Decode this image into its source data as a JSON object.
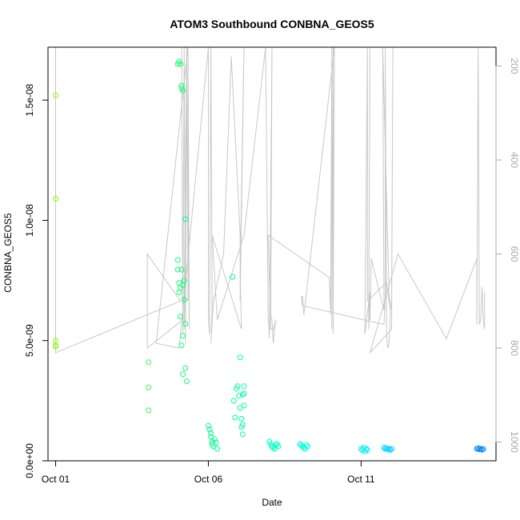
{
  "chart_data": {
    "type": "scatter",
    "title": "ATOM3 Southbound CONBNA_GEOS5",
    "xlabel": "Date",
    "ylabel": "CONBNA_GEOS5",
    "x_type": "date",
    "xlim": [
      "2016-09-30T18:00",
      "2016-10-15T10:00"
    ],
    "ylim": [
      0,
      1.72e-08
    ],
    "ylim_right": [
      1040,
      160
    ],
    "grid": false,
    "legend": "none",
    "x_ticks": [
      {
        "value": "2016-10-01T00:00",
        "label": "Oct 01"
      },
      {
        "value": "2016-10-06T00:00",
        "label": "Oct 06"
      },
      {
        "value": "2016-10-11T00:00",
        "label": "Oct 11"
      }
    ],
    "y_ticks": [
      {
        "value": 0,
        "label": "0.0e+00"
      },
      {
        "value": 5e-09,
        "label": "5.0e-09"
      },
      {
        "value": 1e-08,
        "label": "1.0e-08"
      },
      {
        "value": 1.5e-08,
        "label": "1.5e-08"
      }
    ],
    "y_right_ticks": [
      {
        "value": 200,
        "label": "200"
      },
      {
        "value": 400,
        "label": "400"
      },
      {
        "value": 600,
        "label": "600"
      },
      {
        "value": 800,
        "label": "800"
      },
      {
        "value": 1000,
        "label": "1000"
      }
    ],
    "colors": {
      "gradient": [
        "#80ff00",
        "#00ff80",
        "#00ffff",
        "#0080ff"
      ],
      "pressure_line": "#c8c8c8",
      "axis": "#000000",
      "right_axis": "#a9a9a9"
    },
    "series": [
      {
        "kind": "points",
        "axis": "left",
        "x": [
          "2016-10-01T00:00",
          "2016-10-01T00:00",
          "2016-10-01T00:00",
          "2016-10-01T00:00",
          "2016-10-01T00:00",
          "2016-10-04T01:00",
          "2016-10-04T01:00",
          "2016-10-04T01:00",
          "2016-10-05T00:00",
          "2016-10-05T00:00",
          "2016-10-05T00:00",
          "2016-10-05T01:00",
          "2016-10-05T01:00",
          "2016-10-05T01:00",
          "2016-10-05T02:00",
          "2016-10-05T02:00",
          "2016-10-05T02:00",
          "2016-10-05T03:00",
          "2016-10-05T03:00",
          "2016-10-05T03:00",
          "2016-10-05T03:00",
          "2016-10-05T04:00",
          "2016-10-05T04:00",
          "2016-10-05T04:00",
          "2016-10-05T04:00",
          "2016-10-05T05:00",
          "2016-10-05T05:00",
          "2016-10-05T06:00",
          "2016-10-05T06:00",
          "2016-10-05T06:00",
          "2016-10-05T07:00",
          "2016-10-06T00:00",
          "2016-10-06T01:00",
          "2016-10-06T02:00",
          "2016-10-06T02:00",
          "2016-10-06T03:00",
          "2016-10-06T03:00",
          "2016-10-06T04:00",
          "2016-10-06T05:00",
          "2016-10-06T06:00",
          "2016-10-06T07:00",
          "2016-10-06T19:00",
          "2016-10-06T20:00",
          "2016-10-06T21:00",
          "2016-10-06T22:00",
          "2016-10-06T23:00",
          "2016-10-07T00:00",
          "2016-10-07T01:00",
          "2016-10-07T01:00",
          "2016-10-07T02:00",
          "2016-10-07T02:00",
          "2016-10-07T03:00",
          "2016-10-07T03:00",
          "2016-10-07T04:00",
          "2016-10-07T04:00",
          "2016-10-07T04:00",
          "2016-10-07T03:00",
          "2016-10-08T00:00",
          "2016-10-08T01:00",
          "2016-10-08T02:00",
          "2016-10-08T03:00",
          "2016-10-08T04:00",
          "2016-10-08T05:00",
          "2016-10-08T06:00",
          "2016-10-08T07:00",
          "2016-10-09T00:00",
          "2016-10-09T01:00",
          "2016-10-09T02:00",
          "2016-10-09T03:00",
          "2016-10-09T04:00",
          "2016-10-09T05:00",
          "2016-10-09T06:00",
          "2016-10-11T00:00",
          "2016-10-11T01:00",
          "2016-10-11T02:00",
          "2016-10-11T03:00",
          "2016-10-11T04:00",
          "2016-10-11T05:00",
          "2016-10-11T18:00",
          "2016-10-11T19:00",
          "2016-10-11T20:00",
          "2016-10-11T21:00",
          "2016-10-11T22:00",
          "2016-10-11T23:00",
          "2016-10-12T00:00",
          "2016-10-14T19:00",
          "2016-10-14T20:00",
          "2016-10-14T21:00",
          "2016-10-14T22:00",
          "2016-10-14T23:00",
          "2016-10-15T00:00"
        ],
        "y": [
          1.52e-08,
          1.09e-08,
          5e-09,
          4.8e-09,
          4.75e-09,
          4.1e-09,
          3.05e-09,
          2.1e-09,
          1.65e-08,
          8.35e-09,
          7.95e-09,
          1.66e-08,
          7.4e-09,
          7e-09,
          1.65e-08,
          7.2e-09,
          6e-09,
          1.56e-08,
          1.55e-08,
          7.95e-09,
          4.8e-09,
          1.54e-08,
          7.3e-09,
          5.2e-09,
          3.6e-09,
          7.5e-09,
          6.7e-09,
          1.005e-08,
          5.7e-09,
          3.85e-09,
          3.3e-09,
          1.45e-09,
          1.3e-09,
          1.15e-09,
          1e-09,
          8e-10,
          7e-10,
          6e-10,
          9e-10,
          7.5e-10,
          5e-10,
          7.65e-09,
          2.5e-09,
          1.8e-09,
          3e-09,
          3.1e-09,
          2.7e-09,
          2.2e-09,
          4.3e-09,
          1.75e-09,
          1.4e-09,
          1.5e-09,
          1.1e-09,
          2.8e-09,
          3.1e-09,
          2.3e-09,
          2.75e-09,
          8e-10,
          7e-10,
          6e-10,
          5.5e-10,
          5e-10,
          6.5e-10,
          7e-10,
          6e-10,
          7e-10,
          6.5e-10,
          6e-10,
          5.5e-10,
          5e-10,
          6.5e-10,
          6e-10,
          5e-10,
          4.5e-10,
          5.5e-10,
          4e-10,
          5e-10,
          4.5e-10,
          5.5e-10,
          5e-10,
          5.2e-10,
          4.8e-10,
          5e-10,
          4.5e-10,
          5e-10,
          5e-10,
          5.2e-10,
          4.8e-10,
          5e-10,
          4.6e-10,
          4.9e-10
        ]
      },
      {
        "kind": "line",
        "axis": "right",
        "name": "",
        "x": [
          "2016-10-01T00:00",
          "2016-10-01T00:00",
          "2016-10-01T00:00",
          "2016-10-05T02:00",
          "2016-10-04T00:00",
          "2016-10-04T00:00",
          "2016-10-05T04:00",
          "2016-10-05T03:00",
          "2016-10-05T04:00",
          "2016-10-05T05:00",
          "2016-10-05T06:00",
          "2016-10-05T07:00",
          "2016-10-05T05:00",
          "2016-10-05T05:00",
          "2016-10-05T07:00",
          "2016-10-05T06:00",
          "2016-10-05T07:00",
          "2016-10-05T08:00",
          "2016-10-05T07:00",
          "2016-10-05T09:00",
          "2016-10-05T08:00",
          "2016-10-05T09:00",
          "2016-10-05T08:00",
          "2016-10-04T07:00",
          "2016-10-05T01:00",
          "2016-10-06T00:00",
          "2016-10-06T00:00",
          "2016-10-06T01:00",
          "2016-10-06T02:00",
          "2016-10-06T03:00",
          "2016-10-06T02:00",
          "2016-10-06T04:00",
          "2016-10-06T12:00",
          "2016-10-06T18:00",
          "2016-10-07T01:00",
          "2016-10-07T01:00",
          "2016-10-07T04:00",
          "2016-10-07T01:00",
          "2016-10-07T02:00",
          "2016-10-06T03:00",
          "2016-10-06T07:00",
          "2016-10-07T04:00",
          "2016-10-07T21:00",
          "2016-10-07T23:00",
          "2016-10-07T23:00",
          "2016-10-08T00:00",
          "2016-10-08T02:00",
          "2016-10-08T01:00",
          "2016-10-08T02:00",
          "2016-10-08T03:00",
          "2016-10-08T04:00",
          "2016-10-08T05:00",
          "2016-10-08T03:00",
          "2016-10-08T01:00",
          "2016-10-07T23:00",
          "2016-10-09T23:00",
          "2016-10-10T00:00",
          "2016-10-10T01:00",
          "2016-10-10T01:00",
          "2016-10-10T02:00",
          "2016-10-10T02:00",
          "2016-10-10T03:00",
          "2016-10-09T03:00",
          "2016-10-09T02:00",
          "2016-10-09T01:00",
          "2016-10-09T02:00",
          "2016-10-11T18:00",
          "2016-10-11T19:00",
          "2016-10-11T19:00",
          "2016-10-11T20:00",
          "2016-10-11T21:00",
          "2016-10-11T22:00",
          "2016-10-11T23:00",
          "2016-10-11T20:00",
          "2016-10-11T05:00",
          "2016-10-11T05:00",
          "2016-10-11T03:00",
          "2016-10-11T07:00",
          "2016-10-11T06:00",
          "2016-10-11T07:00",
          "2016-10-11T06:00",
          "2016-10-11T07:00",
          "2016-10-11T08:00",
          "2016-10-11T18:00",
          "2016-10-11T17:00",
          "2016-10-11T22:00",
          "2016-10-12T00:00",
          "2016-10-12T01:00",
          "2016-10-12T00:00",
          "2016-10-11T07:00",
          "2016-10-11T07:00",
          "2016-10-12T05:00",
          "2016-10-13T19:00",
          "2016-10-14T19:00",
          "2016-10-14T19:00",
          "2016-10-14T20:00",
          "2016-10-14T21:00",
          "2016-10-14T22:00",
          "2016-10-14T23:00",
          "2016-10-15T00:00",
          "2016-10-15T01:00",
          "2016-10-15T01:00",
          "2016-10-15T01:00"
        ],
        "y": [
          160,
          160,
          810,
          700,
          600,
          800,
          740,
          160,
          770,
          160,
          780,
          160,
          720,
          760,
          160,
          790,
          160,
          700,
          160,
          760,
          160,
          730,
          160,
          790,
          800,
          160,
          740,
          770,
          160,
          720,
          790,
          700,
          600,
          180,
          560,
          700,
          160,
          640,
          760,
          560,
          740,
          560,
          160,
          730,
          730,
          780,
          160,
          730,
          740,
          790,
          760,
          740,
          760,
          760,
          560,
          650,
          730,
          160,
          760,
          160,
          770,
          160,
          730,
          690,
          690,
          710,
          750,
          690,
          160,
          770,
          800,
          790,
          720,
          660,
          700,
          160,
          770,
          680,
          760,
          160,
          720,
          740,
          610,
          720,
          160,
          690,
          720,
          160,
          760,
          810,
          810,
          600,
          780,
          610,
          750,
          160,
          750,
          740,
          670,
          740,
          760,
          680,
          750
        ]
      }
    ]
  }
}
